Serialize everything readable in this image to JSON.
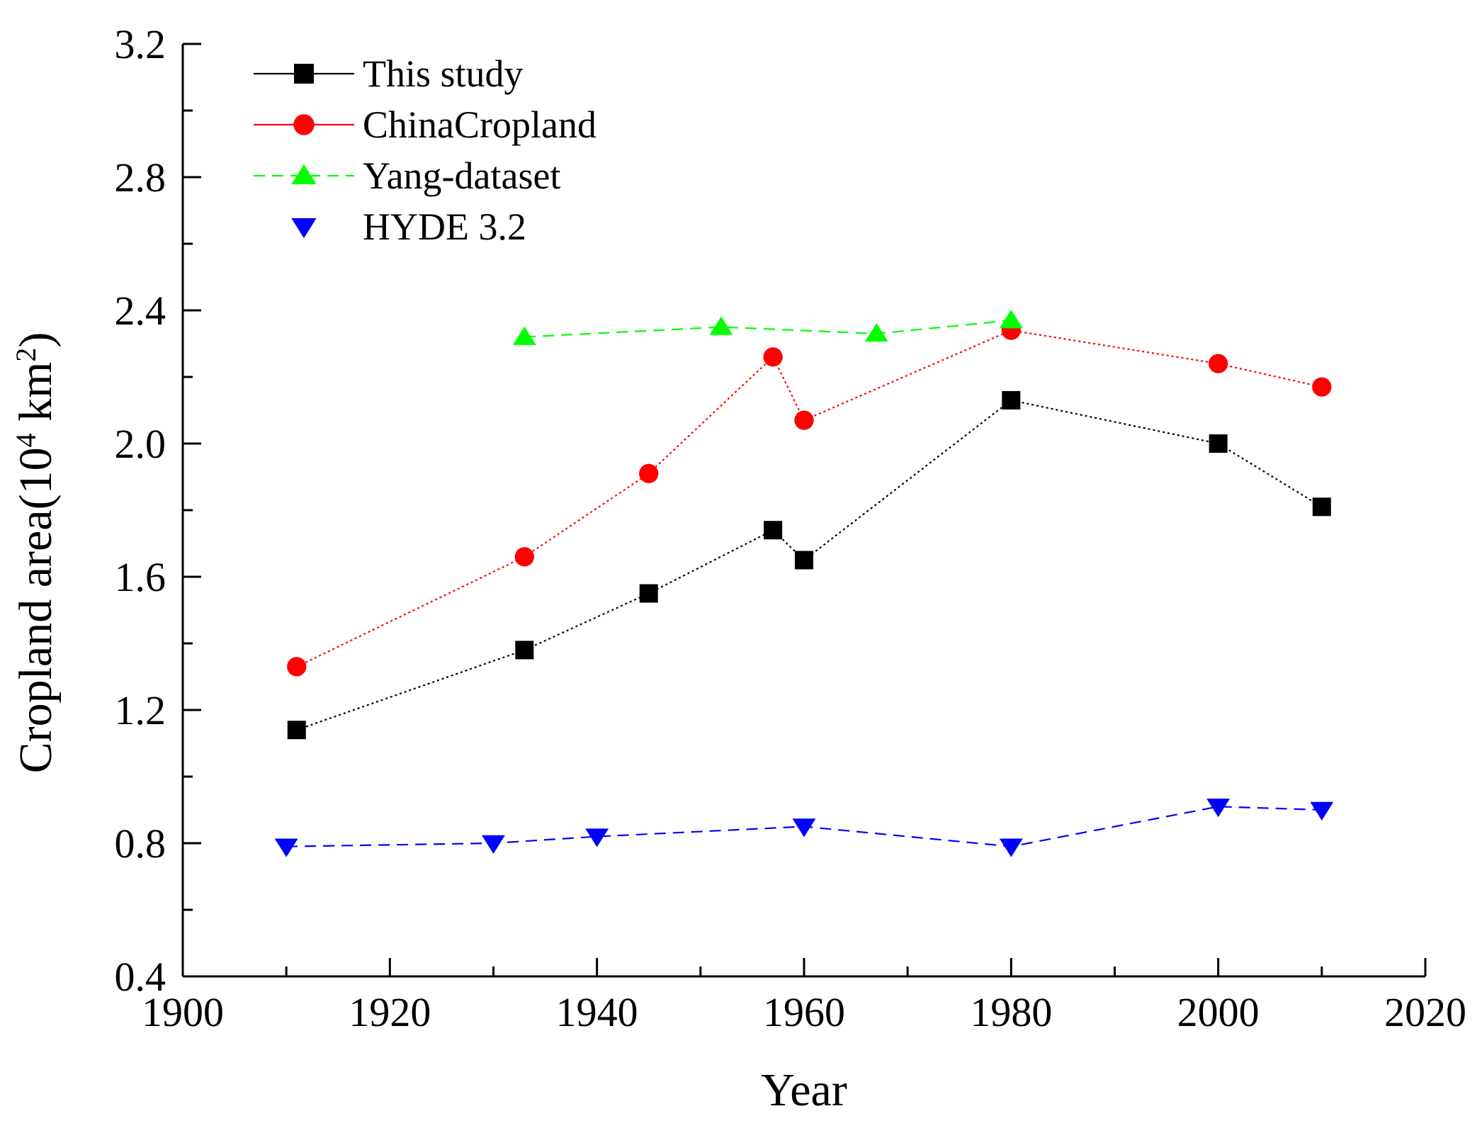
{
  "chart_data": {
    "type": "line",
    "title": "",
    "xlabel": "Year",
    "ylabel": {
      "prefix": "Cropland area(10",
      "exp1": "4",
      "middle": " km",
      "exp2": "2",
      "suffix": ")"
    },
    "xlim": [
      1900,
      2020
    ],
    "ylim": [
      0.4,
      3.2
    ],
    "x_ticks": [
      1900,
      1920,
      1940,
      1960,
      1980,
      2000,
      2020
    ],
    "x_tick_labels": [
      "1900",
      "1920",
      "1940",
      "1960",
      "1980",
      "2000",
      "2020"
    ],
    "x_minor_ticks": [
      1910,
      1930,
      1950,
      1970,
      1990,
      2010
    ],
    "y_ticks": [
      0.4,
      0.8,
      1.2,
      1.6,
      2.0,
      2.4,
      2.8,
      3.2
    ],
    "y_tick_labels": [
      "0.4",
      "0.8",
      "1.2",
      "1.6",
      "2.0",
      "2.4",
      "2.8",
      "3.2"
    ],
    "y_minor_ticks": [
      0.6,
      1.0,
      1.4,
      1.8,
      2.2,
      2.6,
      3.0
    ],
    "grid": false,
    "legend_position": "top-left",
    "series": [
      {
        "name": "This study",
        "color": "#000000",
        "marker": "square",
        "line": "dotted",
        "x": [
          1911,
          1933,
          1945,
          1957,
          1960,
          1980,
          2000,
          2010
        ],
        "y": [
          1.14,
          1.38,
          1.55,
          1.74,
          1.65,
          2.13,
          2.0,
          1.81
        ]
      },
      {
        "name": "ChinaCropland",
        "color": "#ff0000",
        "marker": "circle",
        "line": "dotted",
        "x": [
          1911,
          1933,
          1945,
          1957,
          1960,
          1980,
          2000,
          2010
        ],
        "y": [
          1.33,
          1.66,
          1.91,
          2.26,
          2.07,
          2.34,
          2.24,
          2.17
        ]
      },
      {
        "name": "Yang-dataset",
        "color": "#00ff00",
        "marker": "triangle-up",
        "line": "dashed",
        "x": [
          1933,
          1952,
          1967,
          1980
        ],
        "y": [
          2.32,
          2.35,
          2.33,
          2.37
        ]
      },
      {
        "name": "HYDE 3.2",
        "color": "#0000ff",
        "marker": "triangle-down",
        "line": "dashed",
        "x": [
          1910,
          1930,
          1940,
          1960,
          1980,
          2000,
          2010
        ],
        "y": [
          0.79,
          0.8,
          0.82,
          0.85,
          0.79,
          0.91,
          0.9
        ]
      }
    ]
  }
}
